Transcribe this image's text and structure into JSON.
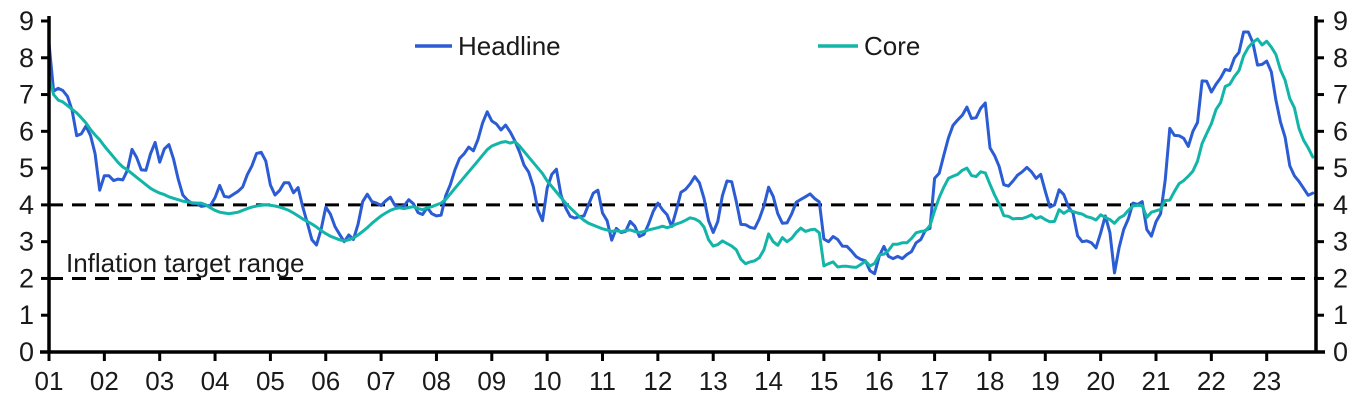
{
  "legend": {
    "headline_label": "Headline",
    "core_label": "Core"
  },
  "annotation": {
    "target_range_label": "Inflation target range"
  },
  "colors": {
    "headline": "#2b5cd3",
    "core": "#12b5a8",
    "axis": "#000000",
    "text": "#1a1a1a"
  },
  "chart_data": {
    "type": "line",
    "title": "",
    "xlabel": "",
    "ylabel": "",
    "grid": false,
    "legend_position": "top-inside",
    "ylim": [
      0,
      9
    ],
    "y_ticks": [
      0,
      1,
      2,
      3,
      4,
      5,
      6,
      7,
      8,
      9
    ],
    "x_tick_labels": [
      "01",
      "02",
      "03",
      "04",
      "05",
      "06",
      "07",
      "08",
      "09",
      "10",
      "11",
      "12",
      "13",
      "14",
      "15",
      "16",
      "17",
      "18",
      "19",
      "20",
      "21",
      "22",
      "23"
    ],
    "x_start_year": 2001,
    "x_step_months": 1,
    "target_range": [
      2,
      4
    ],
    "series": [
      {
        "name": "Headline",
        "color_key": "headline",
        "values": [
          8.4,
          7.09,
          7.17,
          7.11,
          6.95,
          6.57,
          5.88,
          5.93,
          6.14,
          5.89,
          5.39,
          4.4,
          4.79,
          4.79,
          4.66,
          4.7,
          4.68,
          4.94,
          5.51,
          5.29,
          4.95,
          4.94,
          5.39,
          5.7,
          5.16,
          5.52,
          5.64,
          5.25,
          4.7,
          4.27,
          4.13,
          4.04,
          4.04,
          3.96,
          3.98,
          3.98,
          4.2,
          4.53,
          4.23,
          4.21,
          4.29,
          4.37,
          4.49,
          4.82,
          5.06,
          5.4,
          5.43,
          5.19,
          4.54,
          4.27,
          4.39,
          4.6,
          4.6,
          4.33,
          4.47,
          3.95,
          3.51,
          3.05,
          2.91,
          3.33,
          3.94,
          3.75,
          3.41,
          3.2,
          3.0,
          3.18,
          3.06,
          3.47,
          4.09,
          4.29,
          4.09,
          4.05,
          3.98,
          4.11,
          4.21,
          3.99,
          3.95,
          3.98,
          4.14,
          4.03,
          3.79,
          3.74,
          3.93,
          3.76,
          3.7,
          3.72,
          4.25,
          4.55,
          4.95,
          5.26,
          5.39,
          5.57,
          5.47,
          5.78,
          6.23,
          6.53,
          6.28,
          6.2,
          6.04,
          6.17,
          5.98,
          5.74,
          5.44,
          5.08,
          4.89,
          4.5,
          3.86,
          3.57,
          4.46,
          4.83,
          4.97,
          4.27,
          3.92,
          3.69,
          3.64,
          3.68,
          3.7,
          4.02,
          4.32,
          4.4,
          3.78,
          3.57,
          3.04,
          3.36,
          3.25,
          3.28,
          3.55,
          3.42,
          3.14,
          3.2,
          3.48,
          3.82,
          4.05,
          3.87,
          3.73,
          3.41,
          3.85,
          4.34,
          4.42,
          4.57,
          4.77,
          4.6,
          4.18,
          3.57,
          3.25,
          3.55,
          4.25,
          4.65,
          4.63,
          4.09,
          3.47,
          3.46,
          3.39,
          3.36,
          3.62,
          3.97,
          4.48,
          4.23,
          3.76,
          3.5,
          3.51,
          3.75,
          4.07,
          4.15,
          4.22,
          4.3,
          4.17,
          4.08,
          3.07,
          3.0,
          3.14,
          3.06,
          2.88,
          2.87,
          2.74,
          2.59,
          2.52,
          2.48,
          2.21,
          2.13,
          2.61,
          2.87,
          2.6,
          2.54,
          2.6,
          2.54,
          2.65,
          2.73,
          2.97,
          3.06,
          3.31,
          3.36,
          4.72,
          4.86,
          5.35,
          5.82,
          6.16,
          6.31,
          6.44,
          6.66,
          6.35,
          6.37,
          6.63,
          6.77,
          5.55,
          5.34,
          5.04,
          4.55,
          4.51,
          4.65,
          4.81,
          4.9,
          5.02,
          4.9,
          4.72,
          4.83,
          4.37,
          3.94,
          4.0,
          4.41,
          4.28,
          3.95,
          3.78,
          3.16,
          3.0,
          3.02,
          2.97,
          2.83,
          3.24,
          3.7,
          3.25,
          2.15,
          2.84,
          3.33,
          3.62,
          4.05,
          4.01,
          4.09,
          3.33,
          3.15,
          3.54,
          3.76,
          4.67,
          6.08,
          5.89,
          5.88,
          5.81,
          5.59,
          6.0,
          6.24,
          7.37,
          7.36,
          7.07,
          7.28,
          7.45,
          7.68,
          7.65,
          7.99,
          8.15,
          8.7,
          8.7,
          8.41,
          7.8,
          7.82,
          7.91,
          7.62,
          6.85,
          6.25,
          5.84,
          5.06,
          4.79,
          4.64,
          4.45,
          4.26,
          4.32
        ]
      },
      {
        "name": "Core",
        "color_key": "core",
        "values": [
          7.5,
          7.0,
          6.85,
          6.8,
          6.7,
          6.6,
          6.5,
          6.37,
          6.23,
          6.05,
          5.9,
          5.77,
          5.6,
          5.45,
          5.3,
          5.15,
          5.03,
          4.95,
          4.85,
          4.75,
          4.65,
          4.55,
          4.45,
          4.38,
          4.32,
          4.28,
          4.22,
          4.18,
          4.14,
          4.1,
          4.08,
          4.06,
          4.05,
          4.05,
          4.0,
          3.92,
          3.85,
          3.8,
          3.78,
          3.76,
          3.78,
          3.8,
          3.85,
          3.9,
          3.94,
          3.97,
          3.99,
          4.0,
          3.99,
          3.97,
          3.94,
          3.9,
          3.85,
          3.78,
          3.7,
          3.62,
          3.55,
          3.48,
          3.4,
          3.3,
          3.22,
          3.15,
          3.1,
          3.05,
          3.02,
          3.05,
          3.1,
          3.18,
          3.28,
          3.38,
          3.5,
          3.6,
          3.7,
          3.78,
          3.85,
          3.9,
          3.92,
          3.9,
          3.93,
          3.95,
          3.9,
          3.87,
          3.92,
          3.95,
          4.0,
          4.05,
          4.15,
          4.3,
          4.45,
          4.6,
          4.75,
          4.9,
          5.05,
          5.2,
          5.35,
          5.5,
          5.6,
          5.65,
          5.7,
          5.72,
          5.68,
          5.72,
          5.6,
          5.45,
          5.3,
          5.15,
          5.0,
          4.85,
          4.65,
          4.5,
          4.35,
          4.2,
          4.05,
          3.92,
          3.8,
          3.68,
          3.58,
          3.5,
          3.45,
          3.4,
          3.35,
          3.32,
          3.28,
          3.3,
          3.27,
          3.3,
          3.32,
          3.28,
          3.25,
          3.28,
          3.32,
          3.35,
          3.38,
          3.42,
          3.38,
          3.42,
          3.48,
          3.52,
          3.58,
          3.65,
          3.62,
          3.55,
          3.4,
          3.05,
          2.88,
          2.92,
          3.02,
          2.95,
          2.88,
          2.78,
          2.52,
          2.4,
          2.45,
          2.48,
          2.56,
          2.78,
          3.21,
          3.0,
          2.9,
          3.11,
          3.0,
          3.09,
          3.25,
          3.37,
          3.28,
          3.32,
          3.34,
          3.24,
          2.34,
          2.4,
          2.45,
          2.31,
          2.33,
          2.33,
          2.31,
          2.3,
          2.38,
          2.47,
          2.34,
          2.41,
          2.64,
          2.66,
          2.76,
          2.93,
          2.93,
          2.97,
          2.97,
          3.09,
          3.24,
          3.28,
          3.29,
          3.44,
          3.84,
          4.2,
          4.48,
          4.72,
          4.78,
          4.83,
          4.94,
          5.0,
          4.8,
          4.77,
          4.9,
          4.87,
          4.56,
          4.27,
          4.02,
          3.71,
          3.69,
          3.62,
          3.63,
          3.63,
          3.67,
          3.73,
          3.63,
          3.68,
          3.6,
          3.54,
          3.55,
          3.87,
          3.77,
          3.85,
          3.82,
          3.78,
          3.75,
          3.68,
          3.65,
          3.59,
          3.73,
          3.66,
          3.6,
          3.5,
          3.64,
          3.71,
          3.85,
          3.97,
          3.99,
          3.98,
          3.66,
          3.8,
          3.84,
          3.88,
          4.12,
          4.13,
          4.37,
          4.58,
          4.66,
          4.78,
          4.92,
          5.19,
          5.67,
          5.94,
          6.21,
          6.59,
          6.78,
          7.22,
          7.28,
          7.49,
          7.65,
          8.05,
          8.28,
          8.42,
          8.51,
          8.35,
          8.45,
          8.29,
          8.09,
          7.67,
          7.39,
          6.89,
          6.64,
          6.08,
          5.76,
          5.55,
          5.3
        ]
      }
    ]
  }
}
